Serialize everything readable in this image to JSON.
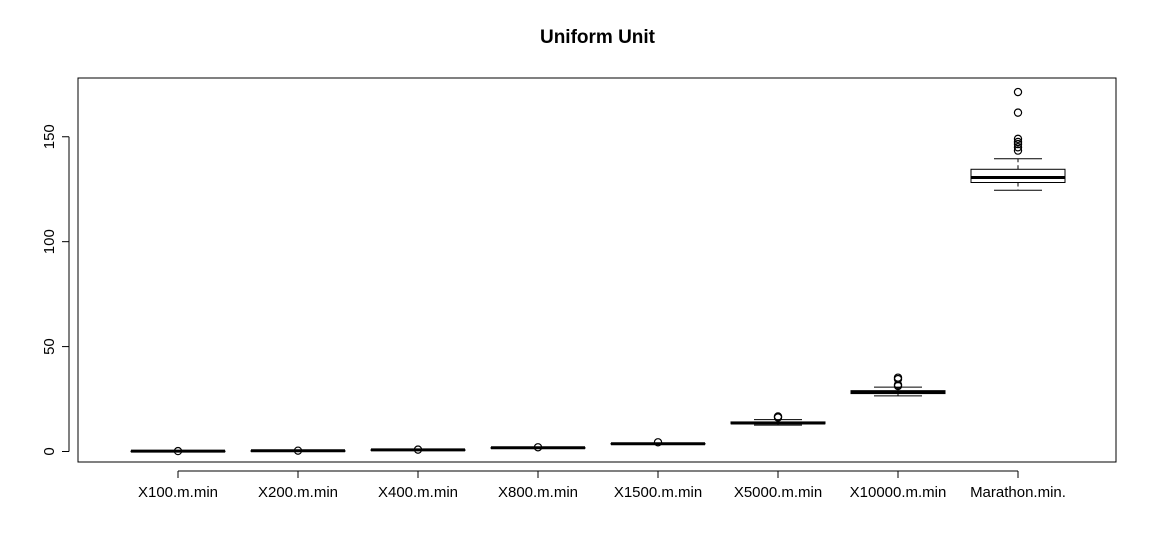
{
  "chart_data": {
    "type": "boxplot",
    "title": "Uniform Unit",
    "xlabel": "",
    "ylabel": "",
    "ylim": [
      -5,
      178
    ],
    "y_ticks": [
      0,
      50,
      100,
      150
    ],
    "grid": false,
    "categories": [
      "X100.m.min",
      "X200.m.min",
      "X400.m.min",
      "X800.m.min",
      "X1500.m.min",
      "X5000.m.min",
      "X10000.m.min",
      "Marathon.min."
    ],
    "boxes": [
      {
        "whisker_low": 0.16,
        "q1": 0.17,
        "median": 0.17,
        "q3": 0.18,
        "whisker_high": 0.19,
        "outliers": [
          0.2
        ]
      },
      {
        "whisker_low": 0.33,
        "q1": 0.34,
        "median": 0.35,
        "q3": 0.36,
        "whisker_high": 0.38,
        "outliers": [
          0.4
        ]
      },
      {
        "whisker_low": 0.74,
        "q1": 0.76,
        "median": 0.77,
        "q3": 0.8,
        "whisker_high": 0.84,
        "outliers": [
          0.9
        ]
      },
      {
        "whisker_low": 1.7,
        "q1": 1.75,
        "median": 1.79,
        "q3": 1.83,
        "whisker_high": 1.9,
        "outliers": [
          2.02
        ]
      },
      {
        "whisker_low": 3.45,
        "q1": 3.6,
        "median": 3.7,
        "q3": 3.82,
        "whisker_high": 4.0,
        "outliers": [
          4.4
        ]
      },
      {
        "whisker_low": 12.6,
        "q1": 13.2,
        "median": 13.6,
        "q3": 14.1,
        "whisker_high": 15.2,
        "outliers": [
          16.2,
          16.7
        ]
      },
      {
        "whisker_low": 26.5,
        "q1": 27.6,
        "median": 28.2,
        "q3": 29.0,
        "whisker_high": 30.7,
        "outliers": [
          31.2,
          31.8,
          34.5,
          35.2
        ]
      },
      {
        "whisker_low": 124.5,
        "q1": 128.2,
        "median": 130.6,
        "q3": 134.5,
        "whisker_high": 139.5,
        "outliers": [
          143.4,
          145.0,
          146.5,
          147.5,
          149.0,
          161.5,
          171.3
        ]
      }
    ]
  }
}
